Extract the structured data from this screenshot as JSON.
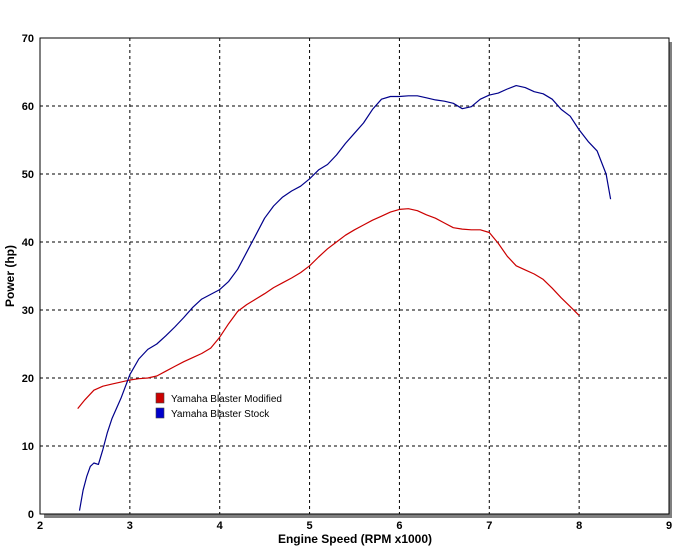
{
  "chart_data": {
    "type": "line",
    "title": "",
    "xlabel": "Engine Speed (RPM x1000)",
    "ylabel": "Power (hp)",
    "xlim": [
      2,
      9
    ],
    "ylim": [
      0,
      70
    ],
    "xticks": [
      2,
      3,
      4,
      5,
      6,
      7,
      8,
      9
    ],
    "yticks": [
      0,
      10,
      20,
      30,
      40,
      50,
      60,
      70
    ],
    "grid": true,
    "legend_position": "center-left",
    "series": [
      {
        "name": "Yamaha Blaster Modified",
        "color": "#cc0000",
        "x": [
          2.42,
          2.5,
          2.6,
          2.7,
          2.8,
          2.9,
          3.0,
          3.1,
          3.2,
          3.3,
          3.4,
          3.5,
          3.6,
          3.7,
          3.8,
          3.9,
          4.0,
          4.1,
          4.2,
          4.3,
          4.4,
          4.5,
          4.6,
          4.7,
          4.8,
          4.9,
          5.0,
          5.1,
          5.2,
          5.3,
          5.4,
          5.5,
          5.6,
          5.7,
          5.8,
          5.9,
          6.0,
          6.1,
          6.2,
          6.3,
          6.4,
          6.5,
          6.6,
          6.7,
          6.8,
          6.9,
          7.0,
          7.1,
          7.2,
          7.3,
          7.4,
          7.5,
          7.6,
          7.7,
          7.8,
          7.9,
          8.0
        ],
        "y": [
          15.5,
          16.8,
          18.2,
          18.8,
          19.1,
          19.4,
          19.7,
          19.9,
          20.0,
          20.3,
          21.0,
          21.7,
          22.4,
          23.0,
          23.6,
          24.4,
          26.0,
          28.0,
          29.8,
          30.8,
          31.6,
          32.4,
          33.3,
          34.0,
          34.7,
          35.5,
          36.5,
          37.8,
          39.0,
          40.0,
          41.0,
          41.8,
          42.5,
          43.2,
          43.8,
          44.4,
          44.8,
          44.9,
          44.6,
          44.0,
          43.5,
          42.8,
          42.1,
          41.9,
          41.8,
          41.8,
          41.4,
          39.8,
          37.9,
          36.5,
          35.9,
          35.3,
          34.5,
          33.2,
          31.8,
          30.5,
          29.2
        ]
      },
      {
        "name": "Yamaha Blaster Stock",
        "color": "#00008b",
        "x": [
          2.44,
          2.48,
          2.52,
          2.56,
          2.6,
          2.65,
          2.7,
          2.75,
          2.8,
          2.9,
          3.0,
          3.1,
          3.2,
          3.3,
          3.4,
          3.5,
          3.6,
          3.7,
          3.8,
          3.9,
          4.0,
          4.1,
          4.2,
          4.3,
          4.4,
          4.5,
          4.6,
          4.7,
          4.8,
          4.9,
          5.0,
          5.1,
          5.2,
          5.3,
          5.4,
          5.5,
          5.6,
          5.7,
          5.8,
          5.9,
          6.0,
          6.1,
          6.2,
          6.3,
          6.4,
          6.5,
          6.6,
          6.7,
          6.8,
          6.9,
          7.0,
          7.1,
          7.2,
          7.3,
          7.4,
          7.5,
          7.6,
          7.7,
          7.8,
          7.9,
          8.0,
          8.1,
          8.2,
          8.3,
          8.35
        ],
        "y": [
          0.5,
          3.5,
          5.5,
          7.0,
          7.5,
          7.3,
          9.5,
          12.0,
          14.0,
          17.0,
          20.5,
          22.8,
          24.2,
          25.0,
          26.2,
          27.5,
          28.9,
          30.4,
          31.6,
          32.3,
          33.0,
          34.2,
          36.0,
          38.5,
          41.0,
          43.5,
          45.3,
          46.6,
          47.5,
          48.2,
          49.3,
          50.6,
          51.4,
          52.8,
          54.5,
          56.0,
          57.5,
          59.5,
          61.0,
          61.4,
          61.4,
          61.5,
          61.5,
          61.2,
          60.9,
          60.7,
          60.4,
          59.6,
          59.9,
          61.0,
          61.6,
          61.9,
          62.5,
          63.0,
          62.7,
          62.1,
          61.8,
          61.0,
          59.5,
          58.5,
          56.5,
          54.8,
          53.4,
          50.0,
          46.3
        ]
      }
    ]
  }
}
